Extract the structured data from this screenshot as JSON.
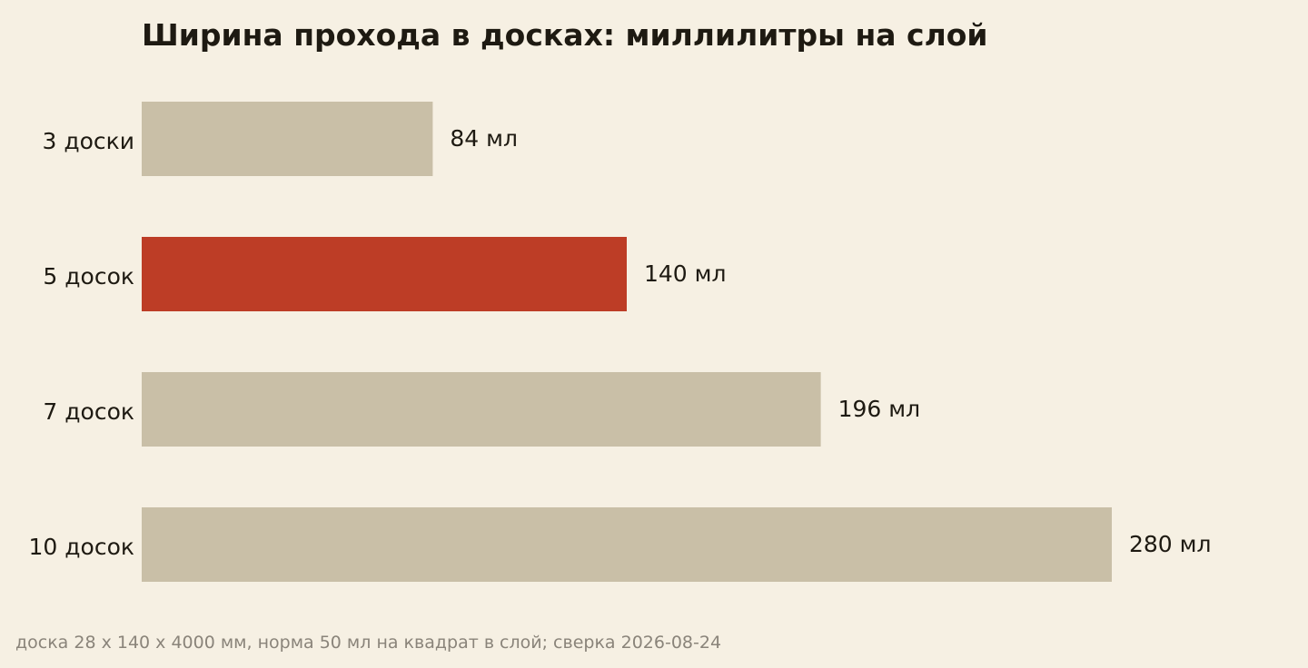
{
  "chart_data": {
    "type": "bar",
    "orientation": "horizontal",
    "title": "Ширина прохода в досках: миллилитры на слой",
    "xlabel": "",
    "ylabel": "",
    "unit": "мл",
    "categories": [
      "3 доски",
      "5 досок",
      "7 досок",
      "10 досок"
    ],
    "values": [
      84,
      140,
      196,
      280
    ],
    "value_labels": [
      "84 мл",
      "140 мл",
      "196 мл",
      "280 мл"
    ],
    "highlight_index": 1,
    "xlim": [
      0,
      280
    ],
    "grid": false,
    "legend": "none",
    "colors": {
      "bar": "#c9bfa7",
      "highlight": "#bd3d26",
      "text": "#1e1a12",
      "note": "#8a847a",
      "background": "#f6f0e3"
    }
  },
  "footnote": "доска 28 x 140 x 4000 мм, норма 50 мл на квадрат в слой; сверка 2026-08-24"
}
